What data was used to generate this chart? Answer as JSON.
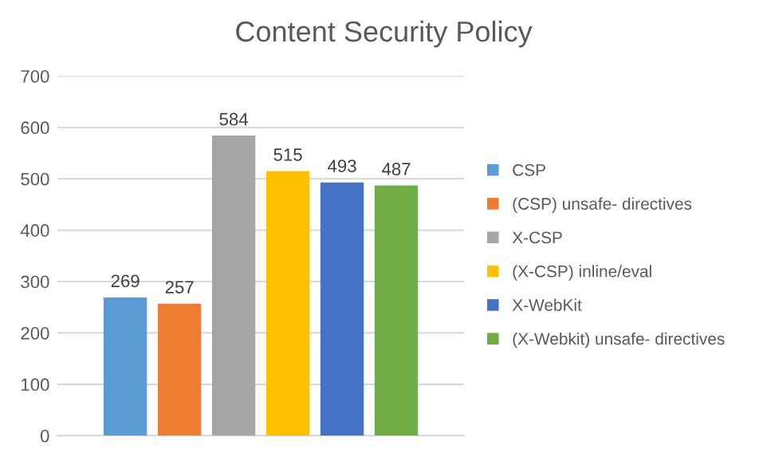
{
  "chart_data": {
    "type": "bar",
    "title": "Content Security Policy",
    "categories": [
      null
    ],
    "series": [
      {
        "name": "CSP",
        "color": "#5b9bd5",
        "values": [
          269
        ]
      },
      {
        "name": "(CSP) unsafe- directives",
        "color": "#ed7d31",
        "values": [
          257
        ]
      },
      {
        "name": "X-CSP",
        "color": "#a5a5a5",
        "values": [
          584
        ]
      },
      {
        "name": "(X-CSP) inline/eval",
        "color": "#ffc000",
        "values": [
          515
        ]
      },
      {
        "name": "X-WebKit",
        "color": "#4472c4",
        "values": [
          493
        ]
      },
      {
        "name": "(X-Webkit) unsafe- directives",
        "color": "#70ad47",
        "values": [
          487
        ]
      }
    ],
    "ylim": [
      0,
      700
    ],
    "yticks": [
      0,
      100,
      200,
      300,
      400,
      500,
      600,
      700
    ],
    "grid": "y",
    "legend": "right",
    "data_labels": true
  }
}
